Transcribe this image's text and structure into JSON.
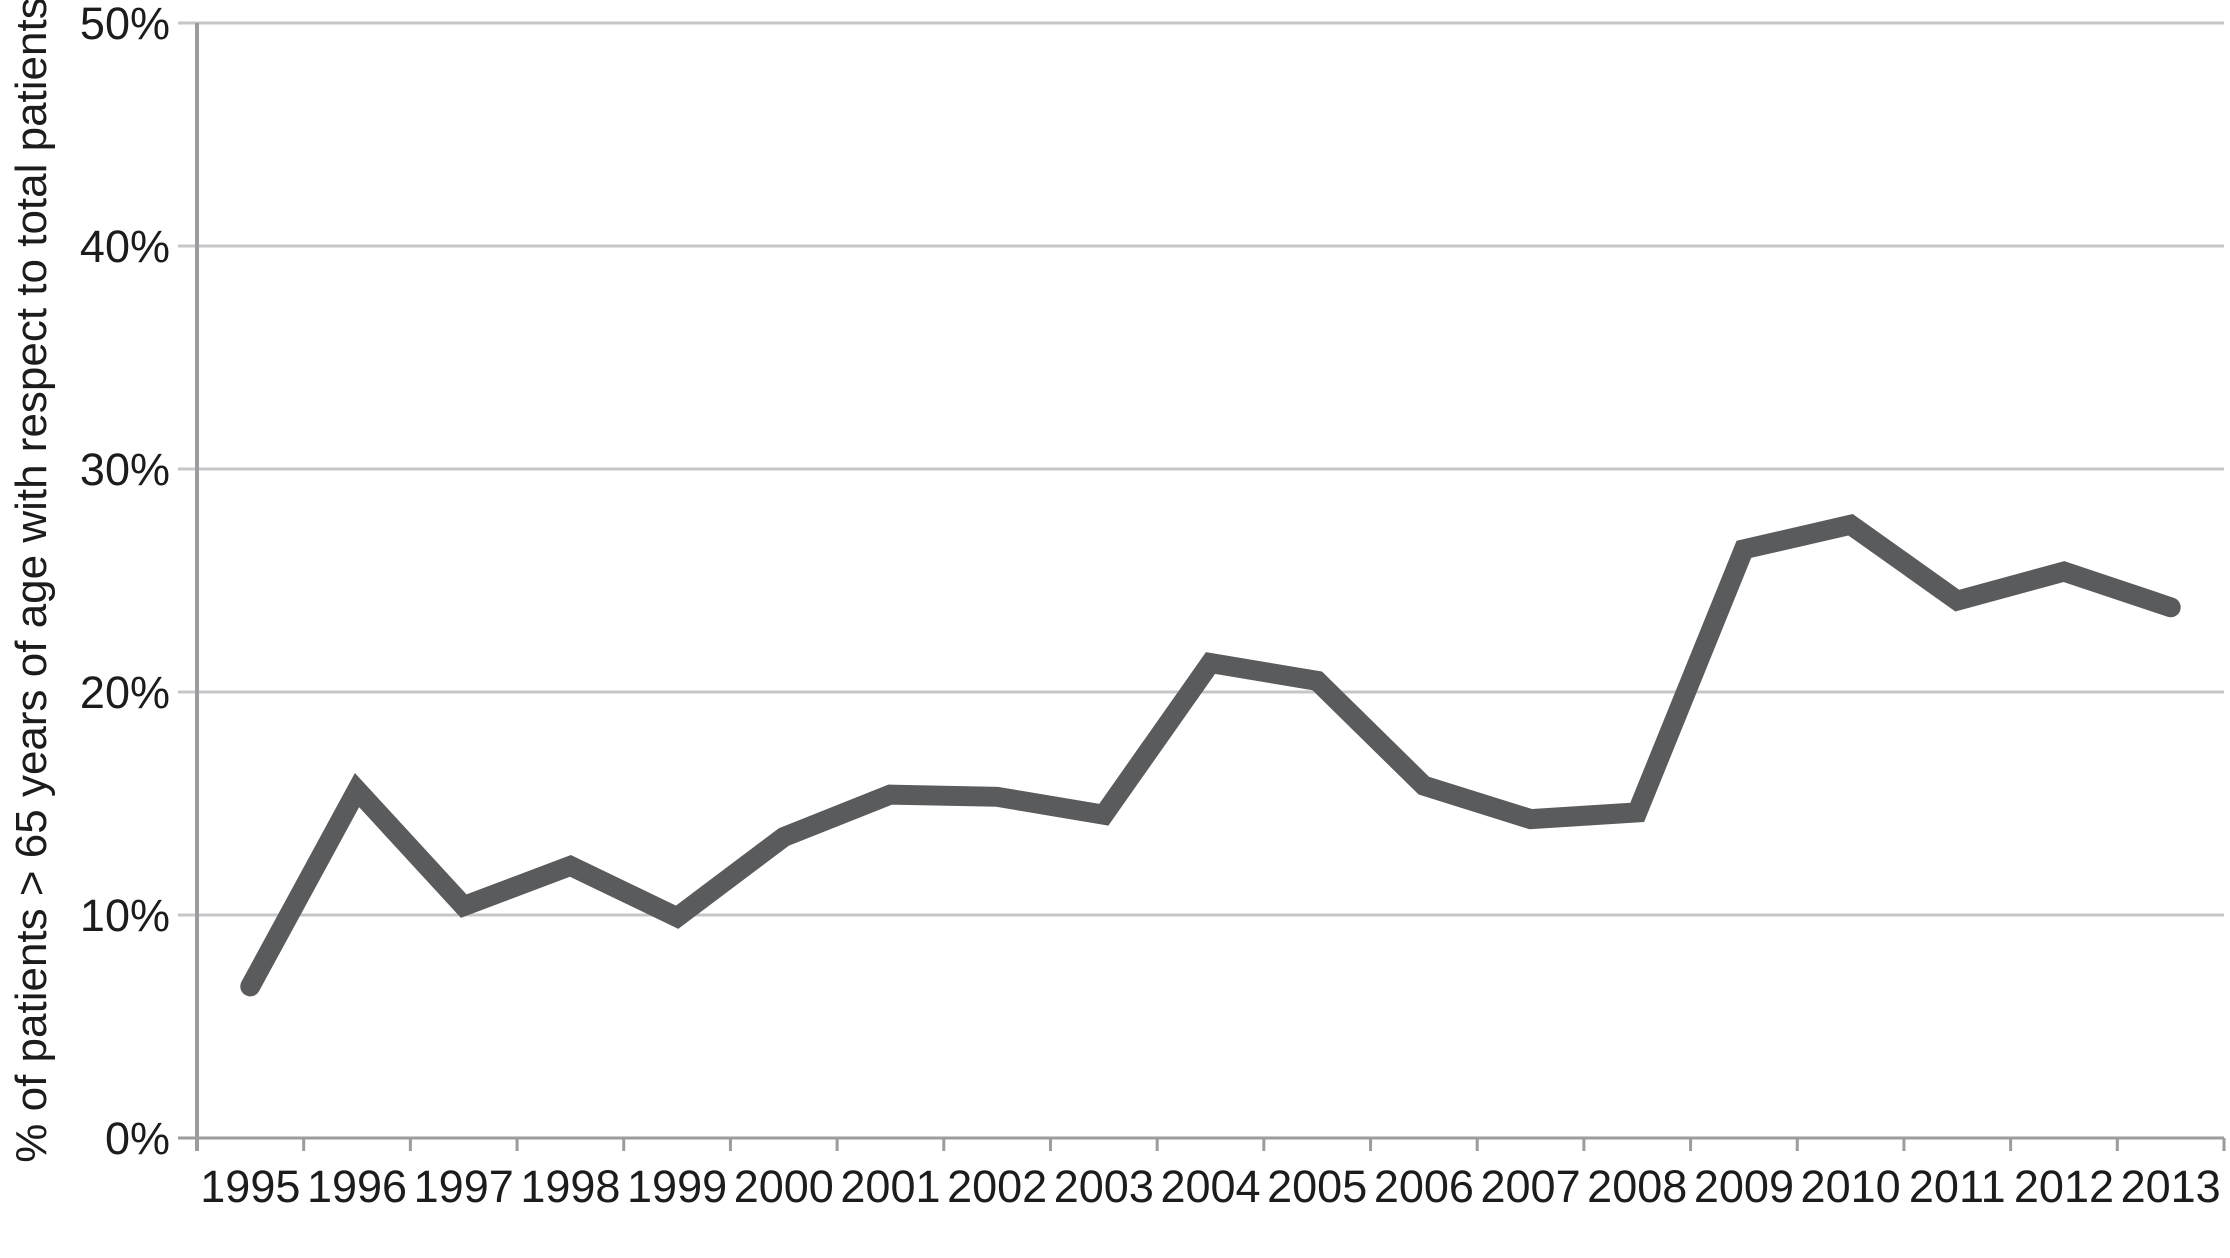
{
  "chart_data": {
    "type": "line",
    "title": "",
    "xlabel": "",
    "ylabel": "% of patients > 65 years of age with respect to total patients",
    "categories": [
      "1995",
      "1996",
      "1997",
      "1998",
      "1999",
      "2000",
      "2001",
      "2002",
      "2003",
      "2004",
      "2005",
      "2006",
      "2007",
      "2008",
      "2009",
      "2010",
      "2011",
      "2012",
      "2013"
    ],
    "series": [
      {
        "name": "% of patients > 65 years of age",
        "values": [
          6.8,
          15.6,
          10.4,
          12.2,
          9.9,
          13.5,
          15.4,
          15.3,
          14.5,
          21.3,
          20.5,
          15.8,
          14.3,
          14.6,
          26.4,
          27.5,
          24.1,
          25.4,
          23.8
        ]
      }
    ],
    "ylim": [
      0,
      50
    ],
    "ytick_step": 10,
    "ytick_labels": [
      "0%",
      "10%",
      "20%",
      "30%",
      "40%",
      "50%"
    ],
    "grid": "horizontal",
    "legend_position": "none",
    "line_color": "#595b5d",
    "grid_color": "#c4c6c8",
    "axis_color": "#9a9c9e",
    "text_color": "#1c1c1c",
    "background_color": "#ffffff"
  }
}
